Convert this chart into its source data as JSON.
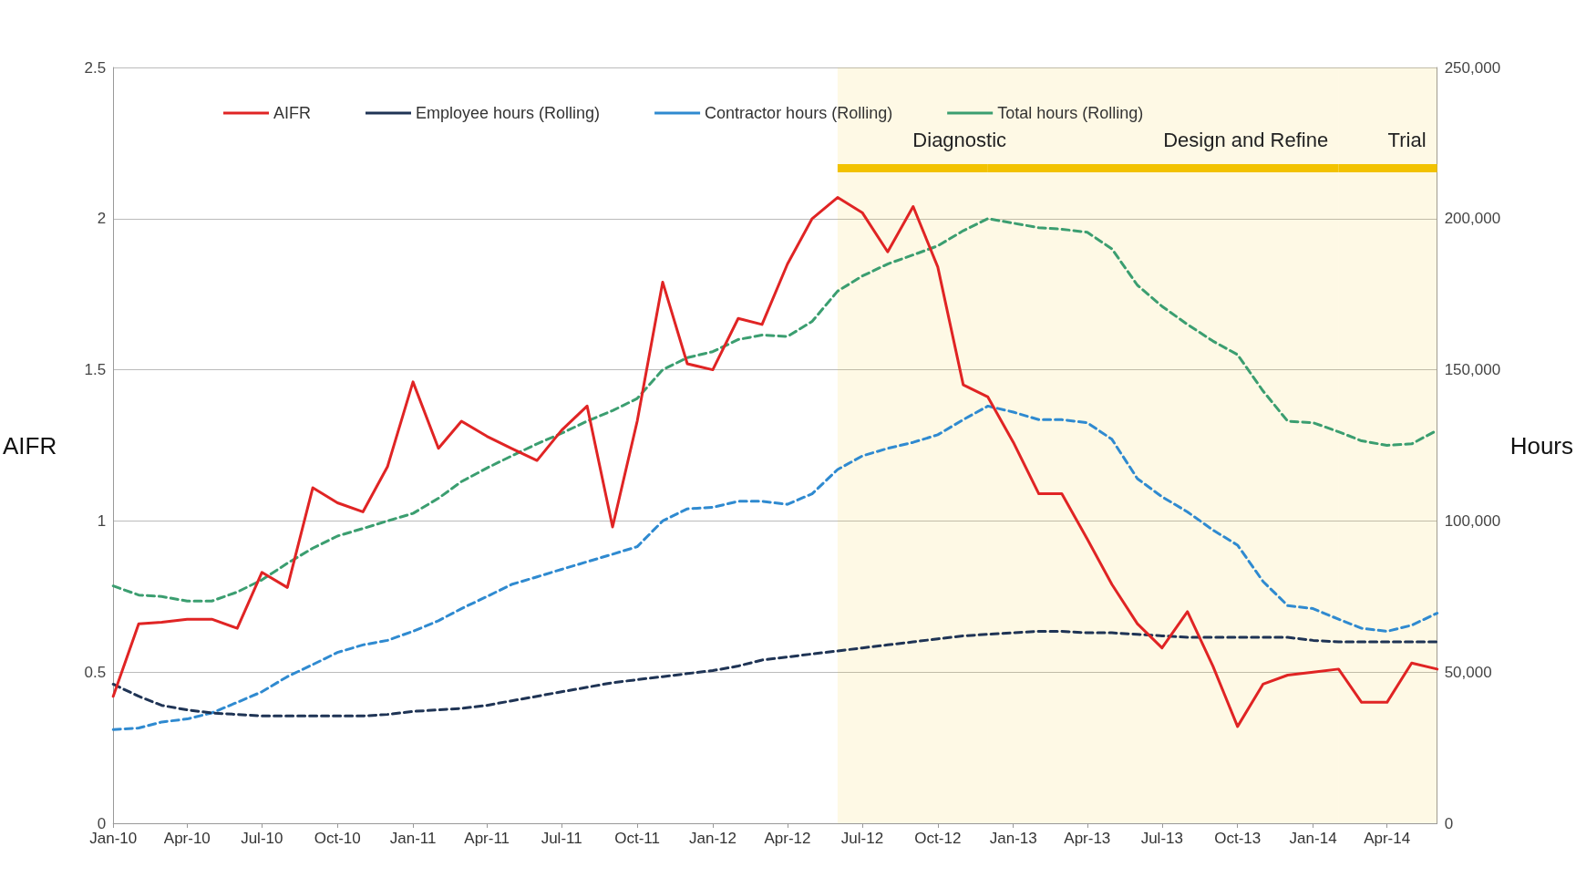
{
  "chart_data": {
    "type": "line",
    "ylabel": "AIFR",
    "y2label": "Hours",
    "x": [
      "2010-01",
      "2010-02",
      "2010-03",
      "2010-04",
      "2010-05",
      "2010-06",
      "2010-07",
      "2010-08",
      "2010-09",
      "2010-10",
      "2010-11",
      "2010-12",
      "2011-01",
      "2011-02",
      "2011-03",
      "2011-04",
      "2011-05",
      "2011-06",
      "2011-07",
      "2011-08",
      "2011-09",
      "2011-10",
      "2011-11",
      "2011-12",
      "2012-01",
      "2012-02",
      "2012-03",
      "2012-04",
      "2012-05",
      "2012-06",
      "2012-07",
      "2012-08",
      "2012-09",
      "2012-10",
      "2012-11",
      "2012-12",
      "2013-01",
      "2013-02",
      "2013-03",
      "2013-04",
      "2013-05",
      "2013-06",
      "2013-07",
      "2013-08",
      "2013-09",
      "2013-10",
      "2013-11",
      "2013-12",
      "2014-01",
      "2014-02",
      "2014-03",
      "2014-04",
      "2014-05",
      "2014-06"
    ],
    "series": [
      {
        "name": "AIFR",
        "color": "#e02424",
        "line_style": "solid",
        "values": [
          0.42,
          0.66,
          0.665,
          0.675,
          0.675,
          0.645,
          0.83,
          0.78,
          1.11,
          1.06,
          1.03,
          1.18,
          1.46,
          1.24,
          1.33,
          1.28,
          1.24,
          1.2,
          1.3,
          1.38,
          0.98,
          1.33,
          1.79,
          1.52,
          1.5,
          1.67,
          1.65,
          1.85,
          2.0,
          2.07,
          2.02,
          1.89,
          2.04,
          1.84,
          1.45,
          1.41,
          1.26,
          1.09,
          1.09,
          0.94,
          0.79,
          0.66,
          0.58,
          0.7,
          0.52,
          0.32,
          0.46,
          0.49,
          0.5,
          0.51,
          0.4,
          0.4,
          0.53,
          0.51
        ]
      },
      {
        "name": "Employee hours (Rolling)",
        "color": "#1f3455",
        "line_style": "dashed",
        "axis": "y2",
        "values": [
          46000,
          42000,
          39000,
          37500,
          36500,
          36000,
          35500,
          35500,
          35500,
          35500,
          35500,
          36000,
          37000,
          37500,
          38000,
          39000,
          40500,
          42000,
          43500,
          45000,
          46500,
          47500,
          48500,
          49500,
          50500,
          52000,
          54000,
          55000,
          56000,
          57000,
          58000,
          59000,
          60000,
          61000,
          62000,
          62500,
          63000,
          63500,
          63500,
          63000,
          63000,
          62500,
          62000,
          61500,
          61500,
          61500,
          61500,
          61500,
          60500,
          60000,
          60000,
          60000,
          60000,
          60000
        ]
      },
      {
        "name": "Contractor hours (Rolling)",
        "color": "#2f8ad0",
        "line_style": "dashed",
        "axis": "y2",
        "values": [
          31000,
          31500,
          33500,
          34500,
          36500,
          40000,
          43500,
          48500,
          52500,
          56500,
          59000,
          60500,
          63500,
          67000,
          71000,
          75000,
          79000,
          81500,
          84000,
          86500,
          89000,
          91500,
          100000,
          104000,
          104500,
          106500,
          106500,
          105500,
          109000,
          117000,
          121500,
          124000,
          126000,
          128500,
          133500,
          138000,
          136000,
          133500,
          133500,
          132500,
          127000,
          114000,
          108000,
          103000,
          97000,
          92000,
          80000,
          72000,
          71000,
          67500,
          64500,
          63500,
          65500,
          69500
        ]
      },
      {
        "name": "Total hours (Rolling)",
        "color": "#3b9e70",
        "line_style": "dashed",
        "axis": "y2",
        "values": [
          78500,
          75500,
          75000,
          73500,
          73500,
          76500,
          80500,
          86000,
          91000,
          95000,
          97500,
          100000,
          102500,
          107500,
          113000,
          117500,
          121500,
          125500,
          129000,
          133000,
          136500,
          140500,
          150000,
          154000,
          156000,
          160000,
          161500,
          161000,
          166000,
          176000,
          181000,
          185000,
          188000,
          191000,
          196000,
          200000,
          198500,
          197000,
          196500,
          195500,
          190000,
          178000,
          171000,
          165000,
          159500,
          155000,
          143000,
          133000,
          132500,
          129500,
          126500,
          125000,
          125500,
          130000
        ]
      }
    ],
    "xlim": [
      "2010-01",
      "2014-06"
    ],
    "xticks": [
      {
        "value": "2010-01",
        "label": "Jan-10"
      },
      {
        "value": "2010-04",
        "label": "Apr-10"
      },
      {
        "value": "2010-07",
        "label": "Jul-10"
      },
      {
        "value": "2010-10",
        "label": "Oct-10"
      },
      {
        "value": "2011-01",
        "label": "Jan-11"
      },
      {
        "value": "2011-04",
        "label": "Apr-11"
      },
      {
        "value": "2011-07",
        "label": "Jul-11"
      },
      {
        "value": "2011-10",
        "label": "Oct-11"
      },
      {
        "value": "2012-01",
        "label": "Jan-12"
      },
      {
        "value": "2012-04",
        "label": "Apr-12"
      },
      {
        "value": "2012-07",
        "label": "Jul-12"
      },
      {
        "value": "2012-10",
        "label": "Oct-12"
      },
      {
        "value": "2013-01",
        "label": "Jan-13"
      },
      {
        "value": "2013-04",
        "label": "Apr-13"
      },
      {
        "value": "2013-07",
        "label": "Jul-13"
      },
      {
        "value": "2013-10",
        "label": "Oct-13"
      },
      {
        "value": "2014-01",
        "label": "Jan-14"
      },
      {
        "value": "2014-04",
        "label": "Apr-14"
      }
    ],
    "ylim": [
      0,
      2.5
    ],
    "yticks": [
      0,
      0.5,
      1,
      1.5,
      2,
      2.5
    ],
    "y2lim": [
      0,
      250000
    ],
    "y2ticks": [
      0,
      {
        "value": 50000,
        "label": "50,000"
      },
      {
        "value": 100000,
        "label": "100,000"
      },
      {
        "value": 150000,
        "label": "150,000"
      },
      {
        "value": 200000,
        "label": "200,000"
      },
      {
        "value": 250000,
        "label": "250,000"
      }
    ],
    "bands": [
      {
        "axis": "x",
        "from": "2012-06",
        "to": "2012-12",
        "label": "Diagnostic",
        "color": "#f2c200"
      },
      {
        "axis": "x",
        "from": "2012-12",
        "to": "2014-02",
        "label": "Design and Refine",
        "color": "#f2c200"
      },
      {
        "axis": "x",
        "from": "2014-02",
        "to": "2014-06",
        "label": "Trial",
        "color": "#f2c200"
      }
    ],
    "grid": "y",
    "legend": "top",
    "marker": "none"
  }
}
